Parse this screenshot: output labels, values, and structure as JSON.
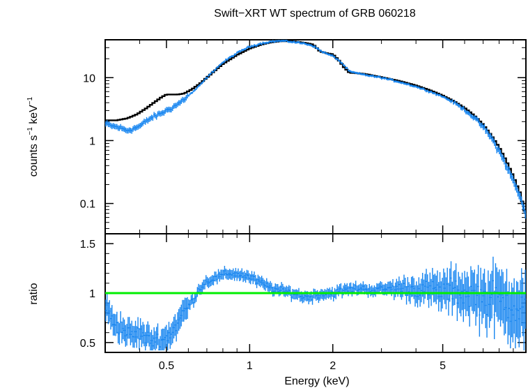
{
  "chart_data": {
    "type": "spectrum",
    "title": "Swift−XRT WT spectrum of GRB 060218",
    "xlabel": "Energy (keV)",
    "x_scale": "log",
    "xlim": [
      0.3,
      10
    ],
    "x_ticks": [
      {
        "value": 0.5,
        "label": "0.5"
      },
      {
        "value": 1,
        "label": "1"
      },
      {
        "value": 2,
        "label": "2"
      },
      {
        "value": 5,
        "label": "5"
      }
    ],
    "top_panel": {
      "ylabel_parts": {
        "main": "counts s",
        "sup1": "−1",
        "mid": " keV",
        "sup2": "−1"
      },
      "y_scale": "log",
      "ylim": [
        0.033,
        40
      ],
      "y_ticks": [
        {
          "value": 10,
          "label": "10"
        },
        {
          "value": 1,
          "label": "1"
        },
        {
          "value": 0.1,
          "label": "0.1"
        }
      ],
      "data_color": "#1685f0",
      "model_color": "#000000",
      "data_points": [
        [
          0.3,
          1.85
        ],
        [
          0.32,
          1.7
        ],
        [
          0.34,
          1.6
        ],
        [
          0.36,
          1.45
        ],
        [
          0.38,
          1.55
        ],
        [
          0.4,
          1.7
        ],
        [
          0.42,
          2.0
        ],
        [
          0.44,
          2.3
        ],
        [
          0.46,
          2.5
        ],
        [
          0.48,
          2.75
        ],
        [
          0.5,
          3.0
        ],
        [
          0.52,
          3.3
        ],
        [
          0.55,
          3.8
        ],
        [
          0.58,
          4.6
        ],
        [
          0.62,
          5.8
        ],
        [
          0.66,
          7.5
        ],
        [
          0.7,
          10.0
        ],
        [
          0.75,
          13.5
        ],
        [
          0.8,
          17.5
        ],
        [
          0.85,
          21.0
        ],
        [
          0.9,
          24.5
        ],
        [
          0.95,
          28.0
        ],
        [
          1.0,
          31.0
        ],
        [
          1.1,
          35.0
        ],
        [
          1.2,
          37.5
        ],
        [
          1.3,
          38.5
        ],
        [
          1.4,
          37.5
        ],
        [
          1.5,
          36.0
        ],
        [
          1.6,
          34.5
        ],
        [
          1.7,
          32.0
        ],
        [
          1.8,
          27.0
        ],
        [
          1.9,
          24.0
        ],
        [
          2.0,
          22.0
        ],
        [
          2.1,
          19.0
        ],
        [
          2.2,
          15.5
        ],
        [
          2.3,
          12.5
        ],
        [
          2.5,
          11.5
        ],
        [
          2.8,
          10.5
        ],
        [
          3.0,
          10.0
        ],
        [
          3.5,
          8.5
        ],
        [
          4.0,
          7.2
        ],
        [
          4.5,
          6.0
        ],
        [
          5.0,
          5.0
        ],
        [
          5.5,
          4.0
        ],
        [
          6.0,
          3.1
        ],
        [
          6.5,
          2.3
        ],
        [
          7.0,
          1.65
        ],
        [
          7.5,
          1.1
        ],
        [
          8.0,
          0.68
        ],
        [
          8.5,
          0.4
        ],
        [
          9.0,
          0.23
        ],
        [
          9.5,
          0.13
        ],
        [
          10.0,
          0.07
        ]
      ],
      "model_points": [
        [
          0.3,
          2.1
        ],
        [
          0.33,
          2.1
        ],
        [
          0.36,
          2.25
        ],
        [
          0.39,
          2.6
        ],
        [
          0.42,
          3.2
        ],
        [
          0.45,
          4.0
        ],
        [
          0.48,
          4.9
        ],
        [
          0.5,
          5.4
        ],
        [
          0.55,
          5.4
        ],
        [
          0.58,
          5.6
        ],
        [
          0.62,
          6.6
        ],
        [
          0.66,
          8.0
        ],
        [
          0.7,
          10.0
        ],
        [
          0.75,
          13.0
        ],
        [
          0.8,
          16.5
        ],
        [
          0.9,
          23.0
        ],
        [
          1.0,
          29.0
        ],
        [
          1.1,
          33.5
        ],
        [
          1.2,
          36.5
        ],
        [
          1.3,
          38.0
        ],
        [
          1.4,
          38.0
        ],
        [
          1.5,
          37.0
        ],
        [
          1.6,
          35.5
        ],
        [
          1.7,
          33.5
        ],
        [
          1.75,
          29.5
        ],
        [
          1.8,
          26.0
        ],
        [
          1.9,
          24.5
        ],
        [
          2.0,
          23.5
        ],
        [
          2.1,
          19.0
        ],
        [
          2.2,
          14.5
        ],
        [
          2.3,
          12.0
        ],
        [
          2.6,
          11.5
        ],
        [
          3.0,
          10.2
        ],
        [
          3.5,
          8.8
        ],
        [
          4.0,
          7.5
        ],
        [
          4.5,
          6.3
        ],
        [
          5.0,
          5.2
        ],
        [
          5.5,
          4.2
        ],
        [
          6.0,
          3.3
        ],
        [
          6.5,
          2.5
        ],
        [
          7.0,
          1.8
        ],
        [
          7.5,
          1.2
        ],
        [
          8.0,
          0.78
        ],
        [
          8.5,
          0.47
        ],
        [
          9.0,
          0.27
        ],
        [
          9.5,
          0.15
        ],
        [
          10.0,
          0.065
        ]
      ]
    },
    "bottom_panel": {
      "ylabel": "ratio",
      "y_scale": "linear",
      "ylim": [
        0.4,
        1.6
      ],
      "y_ticks": [
        {
          "value": 1.5,
          "label": "1.5"
        },
        {
          "value": 1,
          "label": "1"
        },
        {
          "value": 0.5,
          "label": "0.5"
        }
      ],
      "reference_line": 1,
      "reference_color": "#00ee00",
      "data_color": "#1685f0",
      "data_points": [
        [
          0.3,
          0.85
        ],
        [
          0.32,
          0.72
        ],
        [
          0.34,
          0.65
        ],
        [
          0.36,
          0.6
        ],
        [
          0.38,
          0.57
        ],
        [
          0.4,
          0.6
        ],
        [
          0.42,
          0.55
        ],
        [
          0.44,
          0.52
        ],
        [
          0.46,
          0.53
        ],
        [
          0.48,
          0.52
        ],
        [
          0.5,
          0.55
        ],
        [
          0.52,
          0.6
        ],
        [
          0.55,
          0.7
        ],
        [
          0.58,
          0.82
        ],
        [
          0.62,
          0.92
        ],
        [
          0.66,
          1.05
        ],
        [
          0.7,
          1.12
        ],
        [
          0.75,
          1.15
        ],
        [
          0.8,
          1.18
        ],
        [
          0.85,
          1.2
        ],
        [
          0.9,
          1.19
        ],
        [
          0.95,
          1.18
        ],
        [
          1.0,
          1.16
        ],
        [
          1.1,
          1.1
        ],
        [
          1.2,
          1.05
        ],
        [
          1.3,
          1.02
        ],
        [
          1.4,
          1.01
        ],
        [
          1.5,
          0.98
        ],
        [
          1.6,
          0.96
        ],
        [
          1.7,
          0.97
        ],
        [
          1.8,
          0.99
        ],
        [
          2.0,
          1.0
        ],
        [
          2.2,
          1.03
        ],
        [
          2.5,
          1.05
        ],
        [
          2.8,
          1.03
        ],
        [
          3.0,
          1.04
        ],
        [
          3.5,
          1.05
        ],
        [
          4.0,
          1.04
        ],
        [
          4.5,
          1.03
        ],
        [
          5.0,
          1.02
        ],
        [
          5.5,
          1.02
        ],
        [
          6.0,
          1.0
        ],
        [
          6.5,
          0.98
        ],
        [
          7.0,
          0.95
        ],
        [
          7.5,
          0.95
        ],
        [
          8.0,
          0.92
        ],
        [
          8.5,
          0.9
        ],
        [
          9.0,
          0.88
        ],
        [
          9.5,
          0.85
        ],
        [
          10.0,
          0.8
        ]
      ]
    }
  }
}
